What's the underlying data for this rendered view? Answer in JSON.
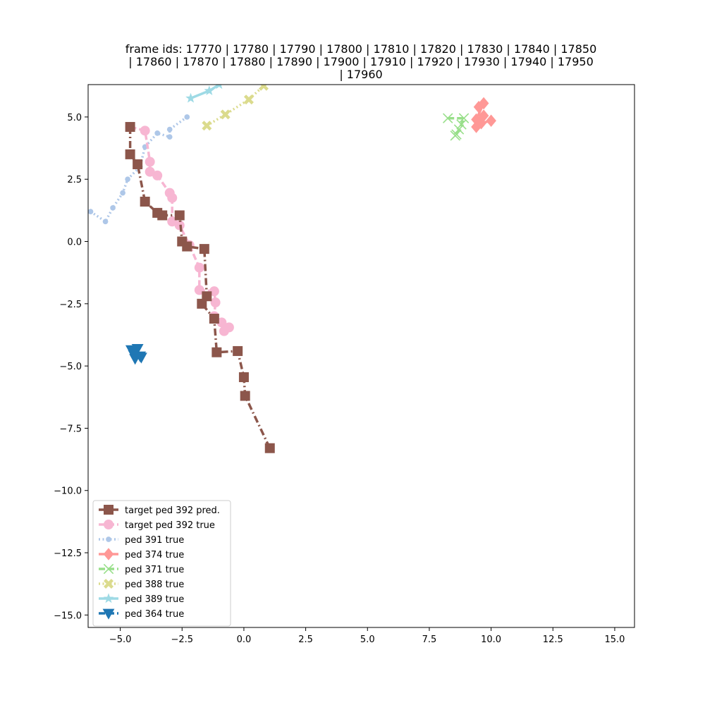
{
  "chart_data": {
    "type": "line",
    "title_lines": [
      "frame ids: 17770 | 17780 | 17790 | 17800 | 17810 | 17820 | 17830 | 17840 | 17850",
      "| 17860 | 17870 | 17880 | 17890 | 17900 | 17910 | 17920 | 17930 | 17940 | 17950",
      "| 17960"
    ],
    "xlim": [
      -6.3,
      15.8
    ],
    "ylim": [
      -15.5,
      6.3
    ],
    "x_ticks": [
      -5.0,
      -2.5,
      0.0,
      2.5,
      5.0,
      7.5,
      10.0,
      12.5,
      15.0
    ],
    "x_tick_labels": [
      "−5.0",
      "−2.5",
      "0.0",
      "2.5",
      "5.0",
      "7.5",
      "10.0",
      "12.5",
      "15.0"
    ],
    "y_ticks": [
      5.0,
      2.5,
      0.0,
      -2.5,
      -5.0,
      -7.5,
      -10.0,
      -12.5,
      -15.0
    ],
    "y_tick_labels": [
      "5.0",
      "2.5",
      "0.0",
      "−2.5",
      "−5.0",
      "−7.5",
      "−10.0",
      "−12.5",
      "−15.0"
    ],
    "grid": false,
    "legend_position": "lower-left",
    "series": [
      {
        "name": "target ped 392 pred.",
        "color": "#8c564b",
        "marker": "square",
        "linestyle": "dashdot",
        "points": [
          [
            -4.6,
            4.6
          ],
          [
            -4.6,
            3.5
          ],
          [
            -4.3,
            3.1
          ],
          [
            -4.0,
            1.6
          ],
          [
            -3.5,
            1.15
          ],
          [
            -3.3,
            1.05
          ],
          [
            -2.6,
            1.05
          ],
          [
            -2.5,
            0.0
          ],
          [
            -2.3,
            -0.2
          ],
          [
            -1.6,
            -0.3
          ],
          [
            -1.5,
            -2.2
          ],
          [
            -1.7,
            -2.5
          ],
          [
            -1.2,
            -3.1
          ],
          [
            -1.1,
            -4.45
          ],
          [
            -0.25,
            -4.4
          ],
          [
            0.0,
            -5.45
          ],
          [
            0.05,
            -6.2
          ],
          [
            1.05,
            -8.3
          ]
        ]
      },
      {
        "name": "target ped 392 true",
        "color": "#f7b6d2",
        "marker": "circle",
        "linestyle": "dashed",
        "points": [
          [
            -4.6,
            4.6
          ],
          [
            -4.0,
            4.45
          ],
          [
            -3.8,
            3.2
          ],
          [
            -3.8,
            2.8
          ],
          [
            -3.5,
            2.65
          ],
          [
            -3.0,
            1.95
          ],
          [
            -2.9,
            1.75
          ],
          [
            -2.9,
            0.8
          ],
          [
            -2.6,
            0.65
          ],
          [
            -2.2,
            -0.15
          ],
          [
            -1.8,
            -1.05
          ],
          [
            -1.8,
            -1.95
          ],
          [
            -1.2,
            -2.0
          ],
          [
            -1.15,
            -2.45
          ],
          [
            -1.2,
            -3.0
          ],
          [
            -0.9,
            -3.25
          ],
          [
            -0.8,
            -3.6
          ],
          [
            -0.6,
            -3.45
          ]
        ]
      },
      {
        "name": "ped 391 true",
        "color": "#aec7e8",
        "marker": "dot",
        "linestyle": "dotted",
        "points": [
          [
            -6.2,
            1.2
          ],
          [
            -5.6,
            0.8
          ],
          [
            -5.3,
            1.35
          ],
          [
            -4.9,
            1.95
          ],
          [
            -4.7,
            2.5
          ],
          [
            -4.2,
            3.0
          ],
          [
            -4.0,
            3.8
          ],
          [
            -3.5,
            4.35
          ],
          [
            -3.0,
            4.2
          ],
          [
            -3.0,
            4.5
          ],
          [
            -2.3,
            5.0
          ]
        ]
      },
      {
        "name": "ped 374 true",
        "color": "#ff9896",
        "marker": "diamond",
        "linestyle": "solid",
        "points": [
          [
            9.5,
            5.4
          ],
          [
            9.7,
            5.55
          ],
          [
            9.4,
            4.9
          ],
          [
            9.7,
            5.05
          ],
          [
            9.4,
            4.6
          ],
          [
            9.6,
            4.75
          ],
          [
            10.0,
            4.85
          ]
        ]
      },
      {
        "name": "ped 371 true",
        "color": "#98df8a",
        "marker": "x",
        "linestyle": "dashed",
        "points": [
          [
            8.25,
            4.95
          ],
          [
            8.9,
            4.95
          ],
          [
            8.8,
            4.7
          ],
          [
            8.7,
            4.5
          ],
          [
            8.6,
            4.3
          ],
          [
            8.55,
            4.25
          ]
        ]
      },
      {
        "name": "ped 388 true",
        "color": "#dbdb8d",
        "marker": "plus",
        "linestyle": "dotted",
        "points": [
          [
            -1.5,
            4.65
          ],
          [
            -0.75,
            5.1
          ],
          [
            0.2,
            5.7
          ],
          [
            0.8,
            6.25
          ]
        ]
      },
      {
        "name": "ped 389 true",
        "color": "#9edae5",
        "marker": "star",
        "linestyle": "solid",
        "points": [
          [
            -2.15,
            5.75
          ],
          [
            -1.4,
            6.05
          ],
          [
            -1.0,
            6.3
          ]
        ]
      },
      {
        "name": "ped 364 true",
        "color": "#1f77b4",
        "marker": "triangle-down",
        "linestyle": "dashed",
        "points": [
          [
            -4.55,
            -4.35
          ],
          [
            -4.3,
            -4.3
          ],
          [
            -4.45,
            -4.55
          ],
          [
            -4.2,
            -4.6
          ],
          [
            -4.4,
            -4.7
          ],
          [
            -4.15,
            -4.65
          ]
        ]
      }
    ]
  }
}
